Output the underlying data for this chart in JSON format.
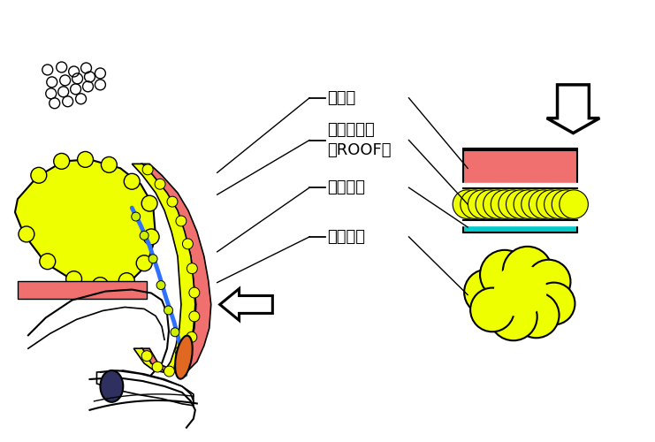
{
  "bg_color": "#ffffff",
  "labels": {
    "ganrin": "眼輪筋",
    "roof": "隔膜前脂肪\n（ROOF）",
    "septum": "眼窩隔膜",
    "orbital_fat": "眼窩脂肪"
  },
  "colors": {
    "red_layer": "#F07070",
    "yellow_fat": "#EEFF00",
    "cyan_layer": "#00CCCC",
    "blue_line": "#3070FF",
    "orange_lump": "#E06820",
    "dark_purple": "#303060"
  }
}
